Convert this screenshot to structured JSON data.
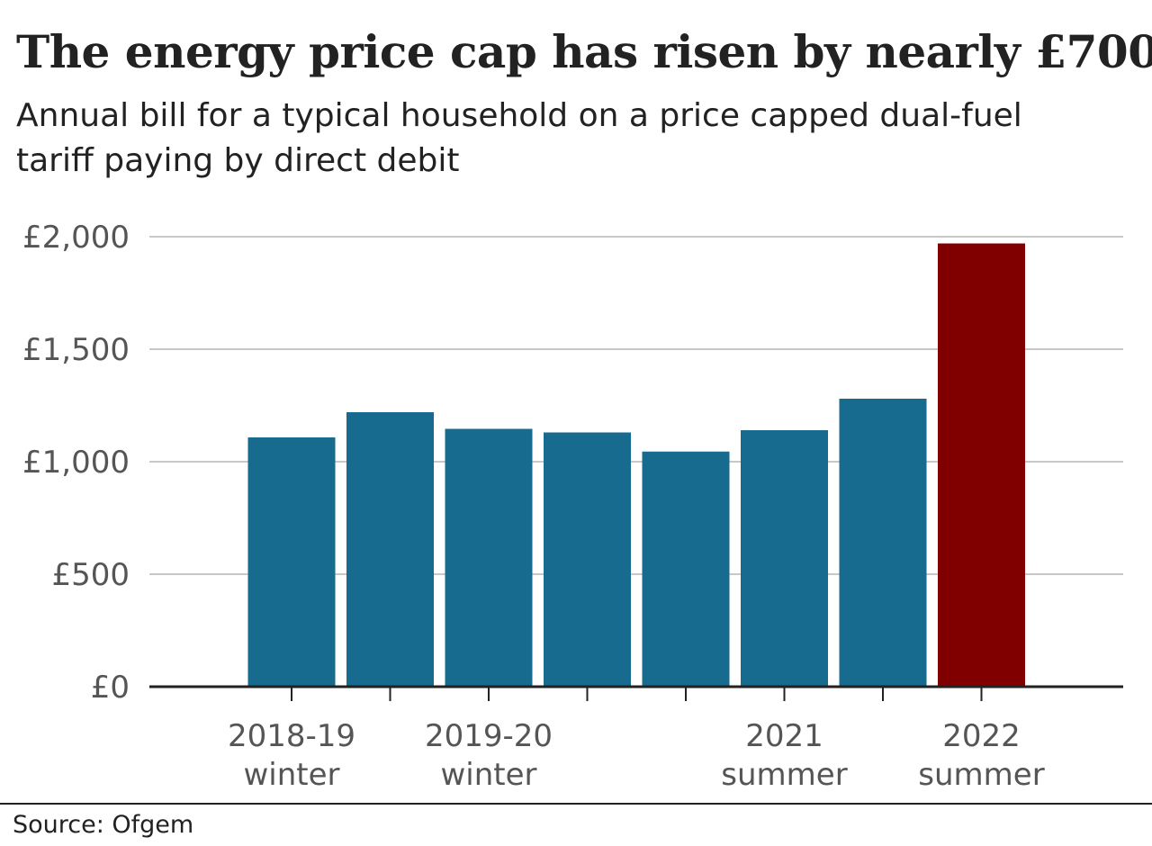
{
  "chart_data": {
    "type": "bar",
    "title": "The energy price cap has risen by nearly £700",
    "subtitle": "Annual bill for a typical household on a price capped dual-fuel tariff paying by direct debit",
    "values": [
      1108,
      1220,
      1146,
      1130,
      1045,
      1140,
      1280,
      1970
    ],
    "x_labels": [
      [
        "2018-19",
        "winter"
      ],
      [
        "",
        ""
      ],
      [
        "2019-20",
        "winter"
      ],
      [
        "",
        ""
      ],
      [
        "",
        ""
      ],
      [
        "2021",
        "summer"
      ],
      [
        "",
        ""
      ],
      [
        "2022",
        "summer"
      ]
    ],
    "y_ticks": [
      {
        "value": 0,
        "label": "£0"
      },
      {
        "value": 500,
        "label": "£500"
      },
      {
        "value": 1000,
        "label": "£1,000"
      },
      {
        "value": 1500,
        "label": "£1,500"
      },
      {
        "value": 2000,
        "label": "£2,000"
      }
    ],
    "ylim": [
      0,
      2000
    ],
    "grid": true,
    "colors": {
      "bar": "#176b8f",
      "highlight": "#800000",
      "grid": "#c8c8c8",
      "axis": "#222222"
    },
    "highlight_index": 7
  },
  "source": "Source: Ofgem"
}
